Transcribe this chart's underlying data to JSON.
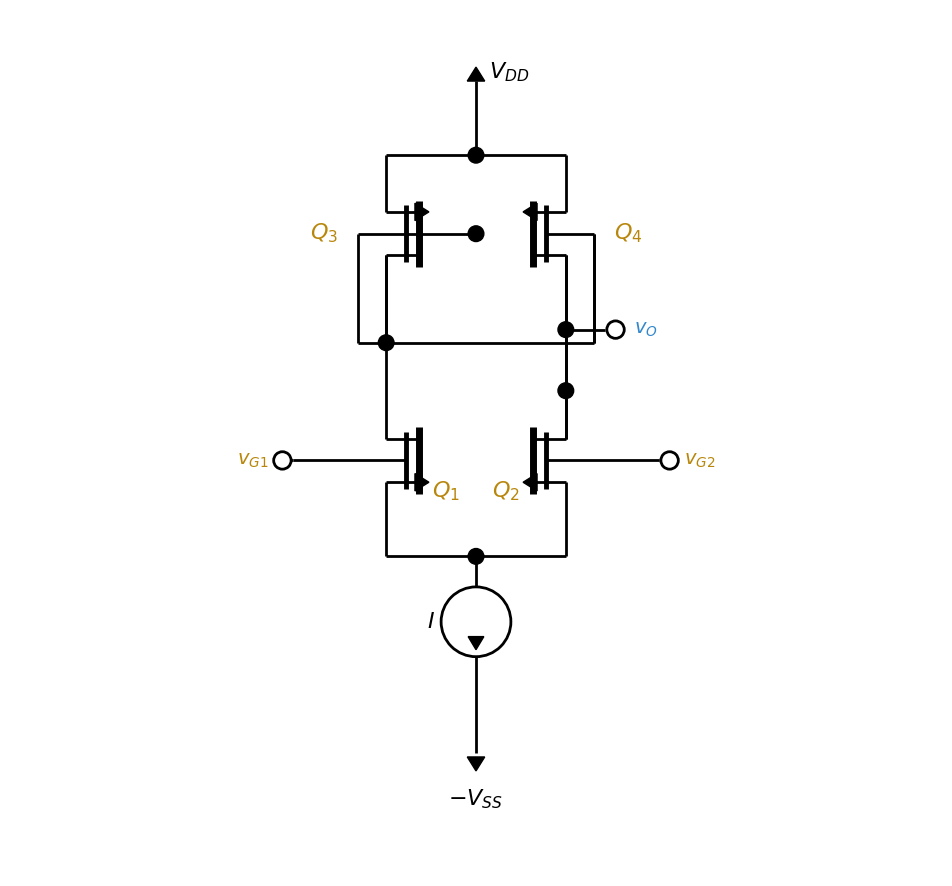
{
  "bg_color": "#ffffff",
  "line_color": "#000000",
  "label_color": "#000000",
  "italic_color": "#b8860b",
  "vo_color": "#3388cc",
  "vdd_label": "$V_{DD}$",
  "vss_label": "$-V_{SS}$",
  "vg1_label": "$v_{G1}$",
  "vg2_label": "$v_{G2}$",
  "vo_label": "$v_O$",
  "q1_label": "$Q_1$",
  "q2_label": "$Q_2$",
  "q3_label": "$Q_3$",
  "q4_label": "$Q_4$",
  "I_label": "$I$",
  "figsize": [
    9.52,
    8.86
  ],
  "dpi": 100
}
